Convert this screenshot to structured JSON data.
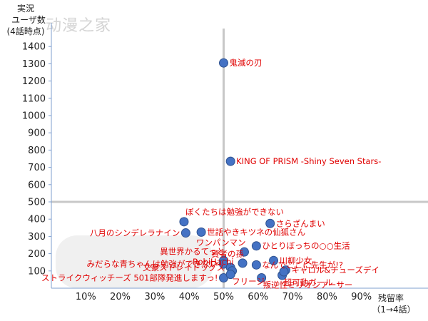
{
  "watermark": "动漫之家",
  "chart_data": {
    "type": "scatter",
    "ylabel_lines": [
      "実況",
      "ユーザ数",
      "(4話時点)"
    ],
    "xlabel_lines": [
      "残留率",
      "（1→4話）"
    ],
    "xlim": [
      0,
      1.0
    ],
    "ylim": [
      0,
      1500
    ],
    "x_ticks": [
      0.1,
      0.2,
      0.3,
      0.4,
      0.5,
      0.6,
      0.7,
      0.8,
      0.9
    ],
    "x_tick_labels": [
      "10%",
      "20%",
      "30%",
      "40%",
      "50%",
      "60%",
      "70%",
      "80%",
      "90%"
    ],
    "y_ticks": [
      100,
      200,
      300,
      400,
      500,
      600,
      700,
      800,
      900,
      1000,
      1100,
      1200,
      1300,
      1400
    ],
    "y_tick_labels": [
      "100",
      "200",
      "300",
      "400",
      "500",
      "600",
      "700",
      "800",
      "900",
      "1000",
      "1100",
      "1200",
      "1300",
      "1400"
    ],
    "reference_lines": {
      "x": 0.5,
      "y": 500
    },
    "colors": {
      "point": "#4472c4",
      "point_edge": "#2f528f",
      "label": "#e00000",
      "ref_line": "#c8c8c8",
      "axis": "#7f9fcf"
    },
    "points": [
      {
        "label": "鬼滅の刃",
        "x": 0.5,
        "y": 1305,
        "label_pos": "right"
      },
      {
        "label": "KING OF PRISM -Shiny Seven Stars-",
        "x": 0.52,
        "y": 735,
        "label_pos": "right"
      },
      {
        "label": "ぼくたちは勉強ができない",
        "x": 0.385,
        "y": 385,
        "label_pos": "upright"
      },
      {
        "label": "さらざんまい",
        "x": 0.635,
        "y": 375,
        "label_pos": "right"
      },
      {
        "label": "世話やきキツネの仙狐さん",
        "x": 0.435,
        "y": 325,
        "label_pos": "right"
      },
      {
        "label": "八月のシンデレラナイン",
        "x": 0.39,
        "y": 320,
        "label_pos": "left"
      },
      {
        "label": "ワンパンマン",
        "x": 0.56,
        "y": 210,
        "label_pos": "upleft"
      },
      {
        "label": "ひとりぼっちの○○生活",
        "x": 0.595,
        "y": 245,
        "label_pos": "right"
      },
      {
        "label": "川柳少女",
        "x": 0.645,
        "y": 160,
        "label_pos": "right"
      },
      {
        "label": "異世界かるてっと",
        "x": 0.5,
        "y": 160,
        "label_pos": "upleft"
      },
      {
        "label": "みだらな青ちゃんは勉強ができない",
        "x": 0.5,
        "y": 140,
        "label_pos": "left"
      },
      {
        "label": "文豪ストレイドッグス",
        "x": 0.52,
        "y": 120,
        "label_pos": "left"
      },
      {
        "label": "賢者の孫",
        "x": 0.555,
        "y": 145,
        "label_pos": "upleft"
      },
      {
        "label": "RobiHachi",
        "x": 0.525,
        "y": 100,
        "label_pos": "upleft"
      },
      {
        "label": "なんでここに先生が!?",
        "x": 0.595,
        "y": 135,
        "label_pos": "right"
      },
      {
        "label": "キャロル&チューズデイ",
        "x": 0.68,
        "y": 105,
        "label_pos": "right"
      },
      {
        "label": "ストライクウィッチーズ 501部隊発進しますっ!",
        "x": 0.5,
        "y": 60,
        "label_pos": "left"
      },
      {
        "label": "フリージ",
        "x": 0.52,
        "y": 80,
        "label_pos": "downright"
      },
      {
        "label": "叛逆性ミリオンアーサー",
        "x": 0.61,
        "y": 60,
        "label_pos": "downright"
      },
      {
        "label": "超可動ガール",
        "x": 0.67,
        "y": 75,
        "label_pos": "downright"
      },
      {
        "label": "",
        "x": 0.675,
        "y": 95,
        "label_pos": "none"
      }
    ]
  }
}
